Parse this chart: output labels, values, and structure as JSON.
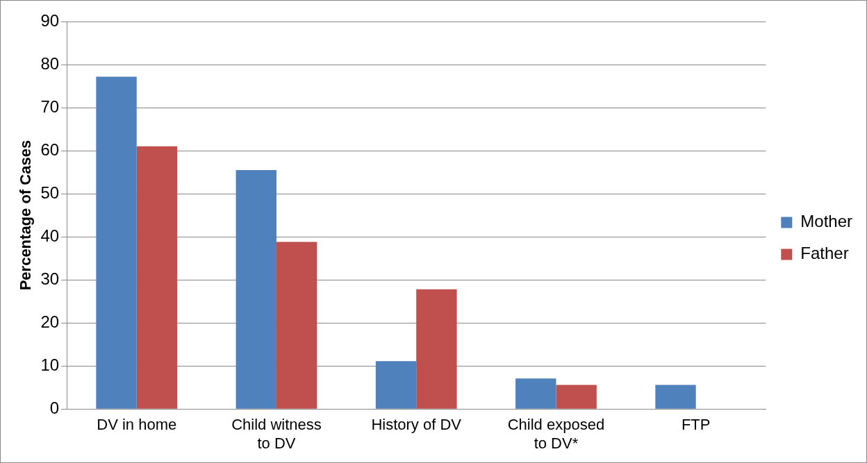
{
  "chart_data": {
    "type": "bar",
    "ylabel": "Percentage of Cases",
    "categories": [
      "DV in home",
      "Child witness to DV",
      "History of DV",
      "Child exposed to DV*",
      "FTP"
    ],
    "series": [
      {
        "name": "Mother",
        "color": "#4f81bd",
        "values": [
          77.2,
          55.5,
          11.1,
          7.1,
          5.6
        ]
      },
      {
        "name": "Father",
        "color": "#c0504d",
        "values": [
          61,
          38.8,
          27.8,
          5.6,
          0
        ]
      }
    ],
    "ylim": [
      0,
      90
    ],
    "yticks": [
      0,
      10,
      20,
      30,
      40,
      50,
      60,
      70,
      80,
      90
    ],
    "grid": "y",
    "legend": "right"
  }
}
